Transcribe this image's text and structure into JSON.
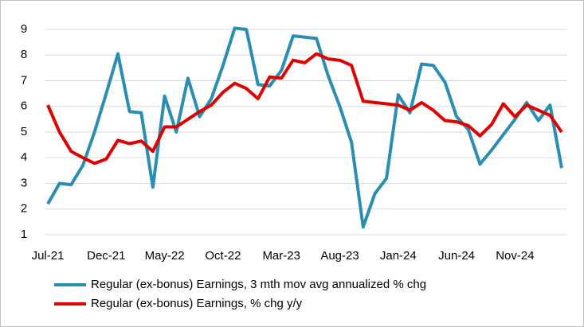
{
  "chart_data": {
    "type": "line",
    "categories": [
      "Jul-21",
      null,
      null,
      null,
      null,
      "Dec-21",
      null,
      null,
      null,
      null,
      "May-22",
      null,
      null,
      null,
      null,
      "Oct-22",
      null,
      null,
      null,
      null,
      "Mar-23",
      null,
      null,
      null,
      null,
      "Aug-23",
      null,
      null,
      null,
      null,
      "Jan-24",
      null,
      null,
      null,
      null,
      "Jun-24",
      null,
      null,
      null,
      null,
      "Nov-24",
      null,
      null,
      null,
      null
    ],
    "series": [
      {
        "name": "Regular (ex-bonus) Earnings, 3 mth mov avg annualized % chg",
        "color": "#2a8db2",
        "values": [
          2.2,
          3.0,
          2.95,
          3.7,
          5.0,
          6.5,
          8.05,
          5.8,
          5.75,
          2.85,
          6.4,
          5.0,
          7.1,
          5.6,
          6.3,
          7.6,
          9.05,
          9.0,
          6.85,
          6.8,
          7.4,
          8.75,
          8.7,
          8.65,
          7.2,
          6.0,
          4.6,
          1.3,
          2.6,
          3.2,
          6.45,
          5.75,
          7.65,
          7.6,
          6.95,
          5.6,
          5.1,
          3.75,
          4.3,
          4.9,
          5.5,
          6.15,
          5.45,
          6.05,
          3.6
        ]
      },
      {
        "name": "Regular (ex-bonus) Earnings, % chg y/y",
        "color": "#e00000",
        "values": [
          6.05,
          5.0,
          4.25,
          4.0,
          3.78,
          3.95,
          4.68,
          4.55,
          4.65,
          4.25,
          5.2,
          5.2,
          5.5,
          5.8,
          6.05,
          6.55,
          6.9,
          6.7,
          6.3,
          7.15,
          7.1,
          7.8,
          7.7,
          8.05,
          7.85,
          7.8,
          7.6,
          6.2,
          6.15,
          6.1,
          6.05,
          5.85,
          6.15,
          5.85,
          5.45,
          5.4,
          5.25,
          4.85,
          5.3,
          6.1,
          5.6,
          6.05,
          5.85,
          5.65,
          5.0
        ]
      }
    ],
    "ylim": [
      1,
      9
    ],
    "yticks": [
      1,
      2,
      3,
      4,
      5,
      6,
      7,
      8,
      9
    ],
    "grid": true
  }
}
